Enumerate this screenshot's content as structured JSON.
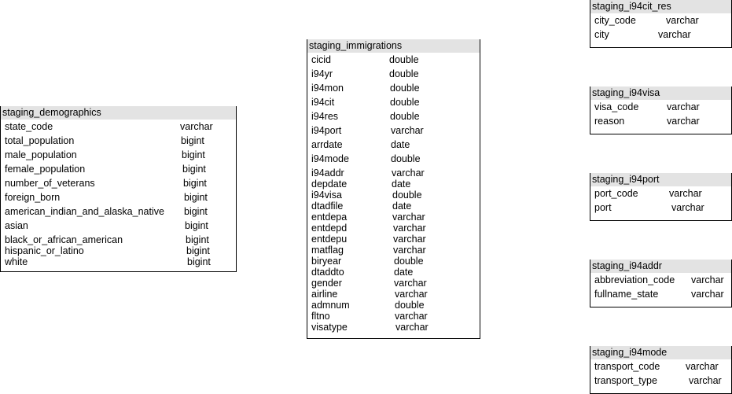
{
  "tables": [
    {
      "id": "tbl-demographics",
      "name": "staging_demographics",
      "columns": [
        {
          "name": "state_code",
          "type": "varchar"
        },
        {
          "name": "total_population",
          "type": "bigint"
        },
        {
          "name": "male_population",
          "type": "bigint"
        },
        {
          "name": "female_population",
          "type": "bigint"
        },
        {
          "name": "number_of_veterans",
          "type": "bigint"
        },
        {
          "name": "foreign_born",
          "type": "bigint"
        },
        {
          "name": "american_indian_and_alaska_native",
          "type": "bigint"
        },
        {
          "name": "asian",
          "type": "bigint"
        },
        {
          "name": "black_or_african_american",
          "type": "bigint"
        },
        {
          "name": "hispanic_or_latino",
          "type": "bigint"
        },
        {
          "name": "white",
          "type": "bigint"
        }
      ]
    },
    {
      "id": "tbl-immigrations",
      "name": "staging_immigrations",
      "columns": [
        {
          "name": "cicid",
          "type": "double"
        },
        {
          "name": "i94yr",
          "type": "double"
        },
        {
          "name": "i94mon",
          "type": "double"
        },
        {
          "name": "i94cit",
          "type": "double"
        },
        {
          "name": "i94res",
          "type": "double"
        },
        {
          "name": "i94port",
          "type": "varchar"
        },
        {
          "name": "arrdate",
          "type": "date"
        },
        {
          "name": "i94mode",
          "type": "double"
        },
        {
          "name": "i94addr",
          "type": "varchar"
        },
        {
          "name": "depdate",
          "type": "date"
        },
        {
          "name": "i94visa",
          "type": "double"
        },
        {
          "name": "dtadfile",
          "type": "date"
        },
        {
          "name": "entdepa",
          "type": "varchar"
        },
        {
          "name": "entdepd",
          "type": "varchar"
        },
        {
          "name": "entdepu",
          "type": "varchar"
        },
        {
          "name": "matflag",
          "type": "varchar"
        },
        {
          "name": "biryear",
          "type": "double"
        },
        {
          "name": "dtaddto",
          "type": "date"
        },
        {
          "name": "gender",
          "type": "varchar"
        },
        {
          "name": "airline",
          "type": "varchar"
        },
        {
          "name": "admnum",
          "type": "double"
        },
        {
          "name": "fltno",
          "type": "varchar"
        },
        {
          "name": "visatype",
          "type": "varchar"
        }
      ]
    },
    {
      "id": "tbl-cit-res",
      "name": "staging_i94cit_res",
      "columns": [
        {
          "name": "city_code",
          "type": "varchar"
        },
        {
          "name": "city",
          "type": "varchar"
        }
      ]
    },
    {
      "id": "tbl-visa",
      "name": "staging_i94visa",
      "columns": [
        {
          "name": "visa_code",
          "type": "varchar"
        },
        {
          "name": "reason",
          "type": "varchar"
        }
      ]
    },
    {
      "id": "tbl-port",
      "name": "staging_i94port",
      "columns": [
        {
          "name": "port_code",
          "type": "varchar"
        },
        {
          "name": "port",
          "type": "varchar"
        }
      ]
    },
    {
      "id": "tbl-addr",
      "name": "staging_i94addr",
      "columns": [
        {
          "name": "abbreviation_code",
          "type": "varchar"
        },
        {
          "name": "fullname_state",
          "type": "varchar"
        }
      ]
    },
    {
      "id": "tbl-mode",
      "name": "staging_i94mode",
      "columns": [
        {
          "name": "transport_code",
          "type": "varchar"
        },
        {
          "name": "transport_type",
          "type": "varchar"
        }
      ]
    }
  ]
}
